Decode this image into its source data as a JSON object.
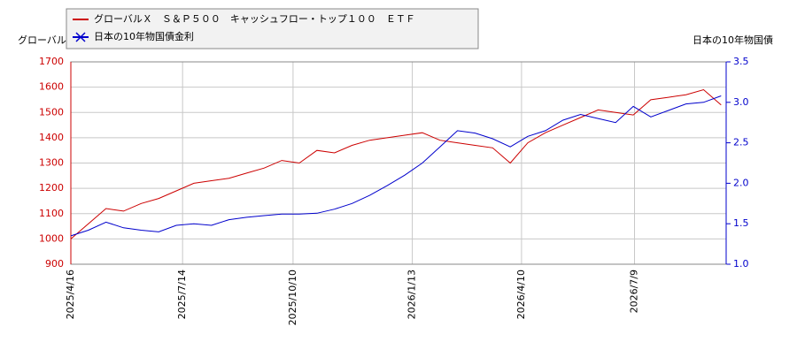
{
  "chart_data": {
    "type": "line",
    "y_label": "グローバルＸ　Ｓ＆Ｐ５００　キャッシュフロー・トップ１００　ＥＴＦ",
    "y2_label": "日本の10年物国債",
    "x": [
      "2025/4/16",
      "2025/4/30",
      "2025/5/14",
      "2025/5/28",
      "2025/6/11",
      "2025/6/25",
      "2025/7/9",
      "2025/7/23",
      "2025/8/6",
      "2025/8/20",
      "2025/9/3",
      "2025/9/17",
      "2025/10/1",
      "2025/10/15",
      "2025/10/29",
      "2025/11/12",
      "2025/11/26",
      "2025/12/10",
      "2025/12/24",
      "2026/1/7",
      "2026/1/21",
      "2026/2/4",
      "2026/2/18",
      "2026/3/4",
      "2026/3/18",
      "2026/4/1",
      "2026/4/15",
      "2026/4/29",
      "2026/5/13",
      "2026/5/27",
      "2026/6/10",
      "2026/6/24",
      "2026/7/8",
      "2026/7/22",
      "2026/8/5",
      "2026/8/19",
      "2026/9/2",
      "2026/9/16"
    ],
    "series": [
      {
        "name": "グローバルＸ　Ｓ＆Ｐ５００　キャッシュフロー・トップ１００　ＥＴＦ",
        "color": "#cc0000",
        "values": [
          1000,
          1060,
          1120,
          1110,
          1140,
          1160,
          1190,
          1220,
          1230,
          1240,
          1260,
          1280,
          1310,
          1300,
          1350,
          1340,
          1370,
          1390,
          1400,
          1410,
          1420,
          1390,
          1380,
          1370,
          1360,
          1300,
          1380,
          1420,
          1450,
          1480,
          1510,
          1500,
          1490,
          1550,
          1560,
          1570,
          1590,
          1530
        ]
      },
      {
        "name": "日本の10年物国債金利",
        "color": "#0000cc",
        "axis": "y2",
        "values": [
          1.35,
          1.42,
          1.52,
          1.45,
          1.42,
          1.4,
          1.48,
          1.5,
          1.48,
          1.55,
          1.58,
          1.6,
          1.62,
          1.62,
          1.63,
          1.68,
          1.75,
          1.85,
          1.97,
          2.1,
          2.25,
          2.45,
          2.65,
          2.62,
          2.55,
          2.45,
          2.58,
          2.65,
          2.78,
          2.85,
          2.8,
          2.75,
          2.95,
          2.82,
          2.9,
          2.98,
          3.0,
          3.08
        ]
      }
    ],
    "xlim": [
      "2025/4/16",
      "2026/9/20"
    ],
    "xticks": [
      "2025/4/16",
      "2025/7/14",
      "2025/10/10",
      "2026/1/13",
      "2026/4/10",
      "2026/7/9"
    ],
    "ylim": [
      900,
      1700
    ],
    "yticks": [
      900,
      1000,
      1100,
      1200,
      1300,
      1400,
      1500,
      1600,
      1700
    ],
    "y2lim": [
      1.0,
      3.5
    ],
    "y2ticks": [
      {
        "value": 1.0,
        "label": "1.0"
      },
      {
        "value": 1.5,
        "label": "1.5"
      },
      {
        "value": 2.0,
        "label": "2.0"
      },
      {
        "value": 2.5,
        "label": "2.5"
      },
      {
        "value": 3.0,
        "label": "3.0"
      },
      {
        "value": 3.5,
        "label": "3.5"
      }
    ],
    "grid": true
  }
}
